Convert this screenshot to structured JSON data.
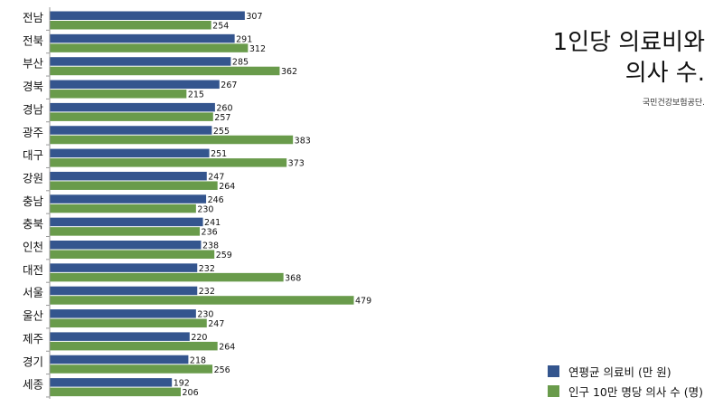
{
  "chart_data": {
    "type": "bar",
    "orientation": "horizontal",
    "title": "1인당 의료비와 의사 수.",
    "title_lines": [
      "1인당 의료비와",
      "의사 수."
    ],
    "source": "국민건강보험공단.",
    "categories": [
      "전남",
      "전북",
      "부산",
      "경북",
      "경남",
      "광주",
      "대구",
      "강원",
      "충남",
      "충북",
      "인천",
      "대전",
      "서울",
      "울산",
      "제주",
      "경기",
      "세종"
    ],
    "series": [
      {
        "name": "연평균 의료비 (만 원)",
        "color": "#34558e",
        "values": [
          307,
          291,
          285,
          267,
          260,
          255,
          251,
          247,
          246,
          241,
          238,
          232,
          232,
          230,
          220,
          218,
          192
        ]
      },
      {
        "name": "인구 10만 명당 의사 수 (명)",
        "color": "#699b4b",
        "values": [
          254,
          312,
          362,
          215,
          257,
          383,
          373,
          264,
          230,
          236,
          259,
          368,
          479,
          247,
          264,
          256,
          206
        ]
      }
    ],
    "xlim": [
      0,
      500
    ],
    "legend_position": "bottom-right"
  }
}
